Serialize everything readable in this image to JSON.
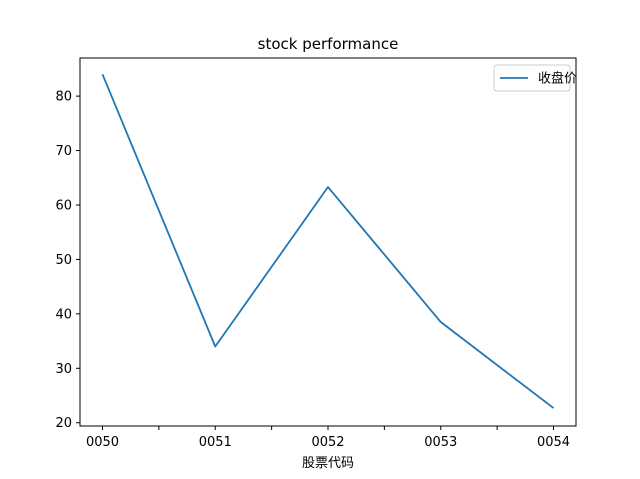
{
  "chart_data": {
    "type": "line",
    "title": "stock performance",
    "xlabel": "股票代码",
    "ylabel": "",
    "categories": [
      "0050",
      "0051",
      "0052",
      "0053",
      "0054"
    ],
    "series": [
      {
        "name": "收盘价",
        "color": "#1f77b4",
        "values": [
          84.0,
          34.0,
          63.3,
          38.5,
          22.7
        ]
      }
    ],
    "yticks": [
      20,
      30,
      40,
      50,
      60,
      70,
      80
    ],
    "ylim": [
      19.4,
      87.0
    ],
    "grid": false,
    "legend_position": "top-right"
  }
}
